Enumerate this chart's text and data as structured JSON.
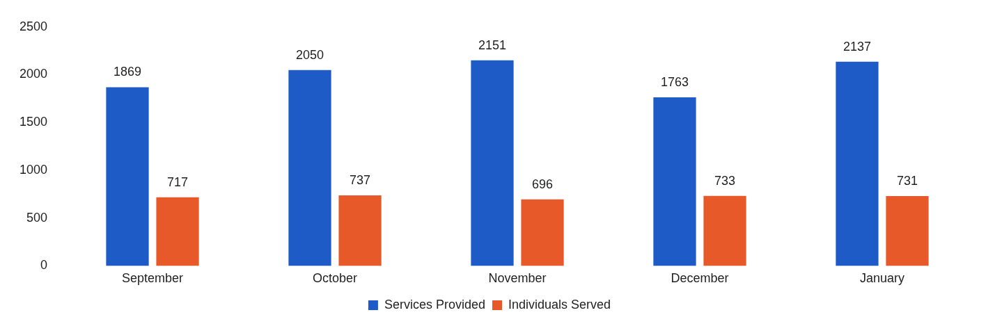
{
  "chart_data": {
    "type": "bar",
    "categories": [
      "September",
      "October",
      "November",
      "December",
      "January"
    ],
    "series": [
      {
        "name": "Services Provided",
        "color": "#1f5bc6",
        "values": [
          1869,
          2050,
          2151,
          1763,
          2137
        ]
      },
      {
        "name": "Individuals Served",
        "color": "#e8592a",
        "values": [
          717,
          737,
          696,
          733,
          731
        ]
      }
    ],
    "ylim": [
      0,
      2500
    ],
    "yticks": [
      0,
      500,
      1000,
      1500,
      2000,
      2500
    ],
    "grid": false,
    "legend": "bottom",
    "data_labels": true
  }
}
